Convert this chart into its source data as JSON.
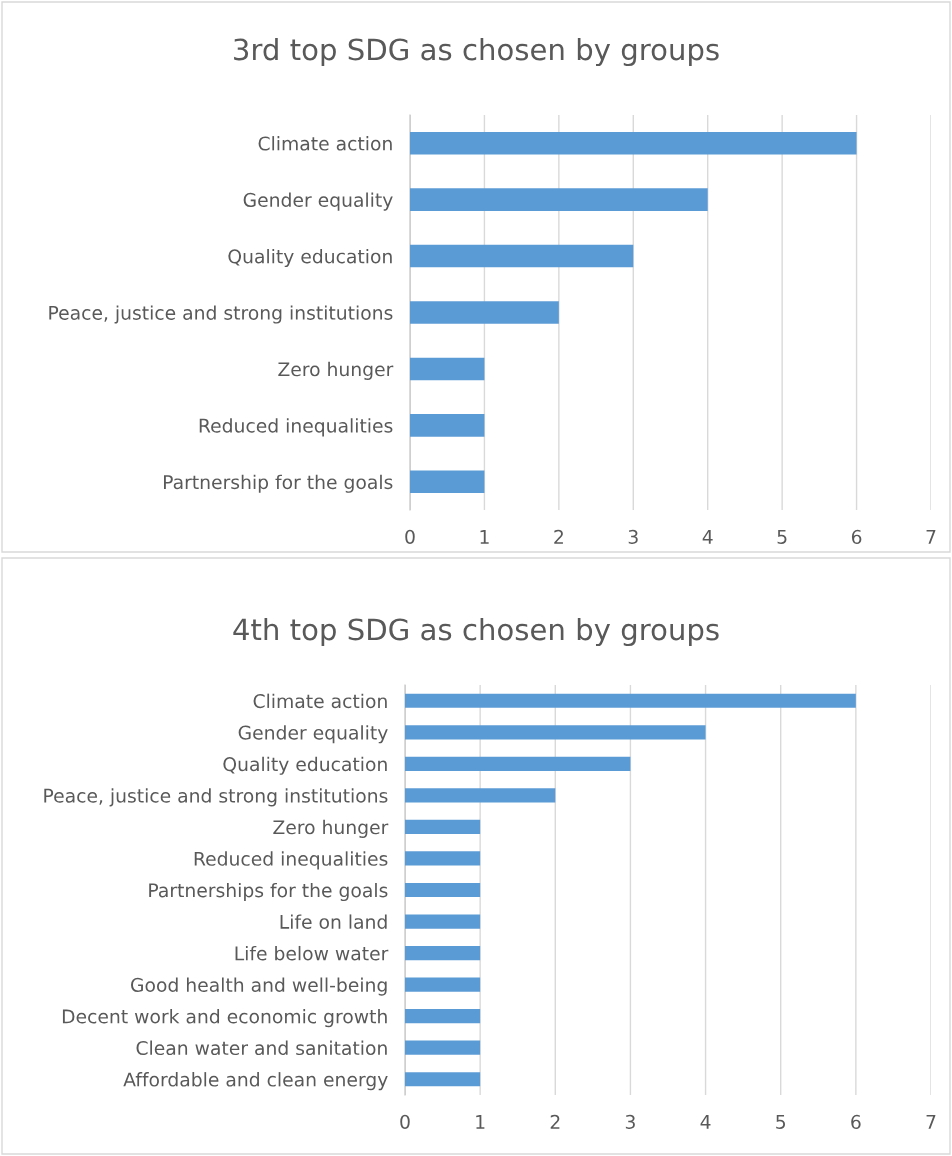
{
  "chart_data": [
    {
      "type": "bar",
      "orientation": "horizontal",
      "title": "3rd top SDG as chosen by groups",
      "categories": [
        "Climate action",
        "Gender equality",
        "Quality education",
        "Peace, justice and strong institutions",
        "Zero hunger",
        "Reduced inequalities",
        "Partnership for the goals"
      ],
      "values": [
        6,
        4,
        3,
        2,
        1,
        1,
        1
      ],
      "color": "#5b9bd5",
      "xlim": [
        0,
        7
      ],
      "xticks": [
        0,
        1,
        2,
        3,
        4,
        5,
        6,
        7
      ],
      "grid": "x",
      "legend": false
    },
    {
      "type": "bar",
      "orientation": "horizontal",
      "title": "4th top SDG as chosen by groups",
      "categories": [
        "Climate action",
        "Gender equality",
        "Quality education",
        "Peace, justice and strong institutions",
        "Zero hunger",
        "Reduced inequalities",
        "Partnerships for the goals",
        "Life on land",
        "Life below water",
        "Good health and well-being",
        "Decent work and economic growth",
        "Clean water and sanitation",
        "Affordable and clean energy"
      ],
      "values": [
        6,
        4,
        3,
        2,
        1,
        1,
        1,
        1,
        1,
        1,
        1,
        1,
        1
      ],
      "color": "#5b9bd5",
      "xlim": [
        0,
        7
      ],
      "xticks": [
        0,
        1,
        2,
        3,
        4,
        5,
        6,
        7
      ],
      "grid": "x",
      "legend": false
    }
  ]
}
